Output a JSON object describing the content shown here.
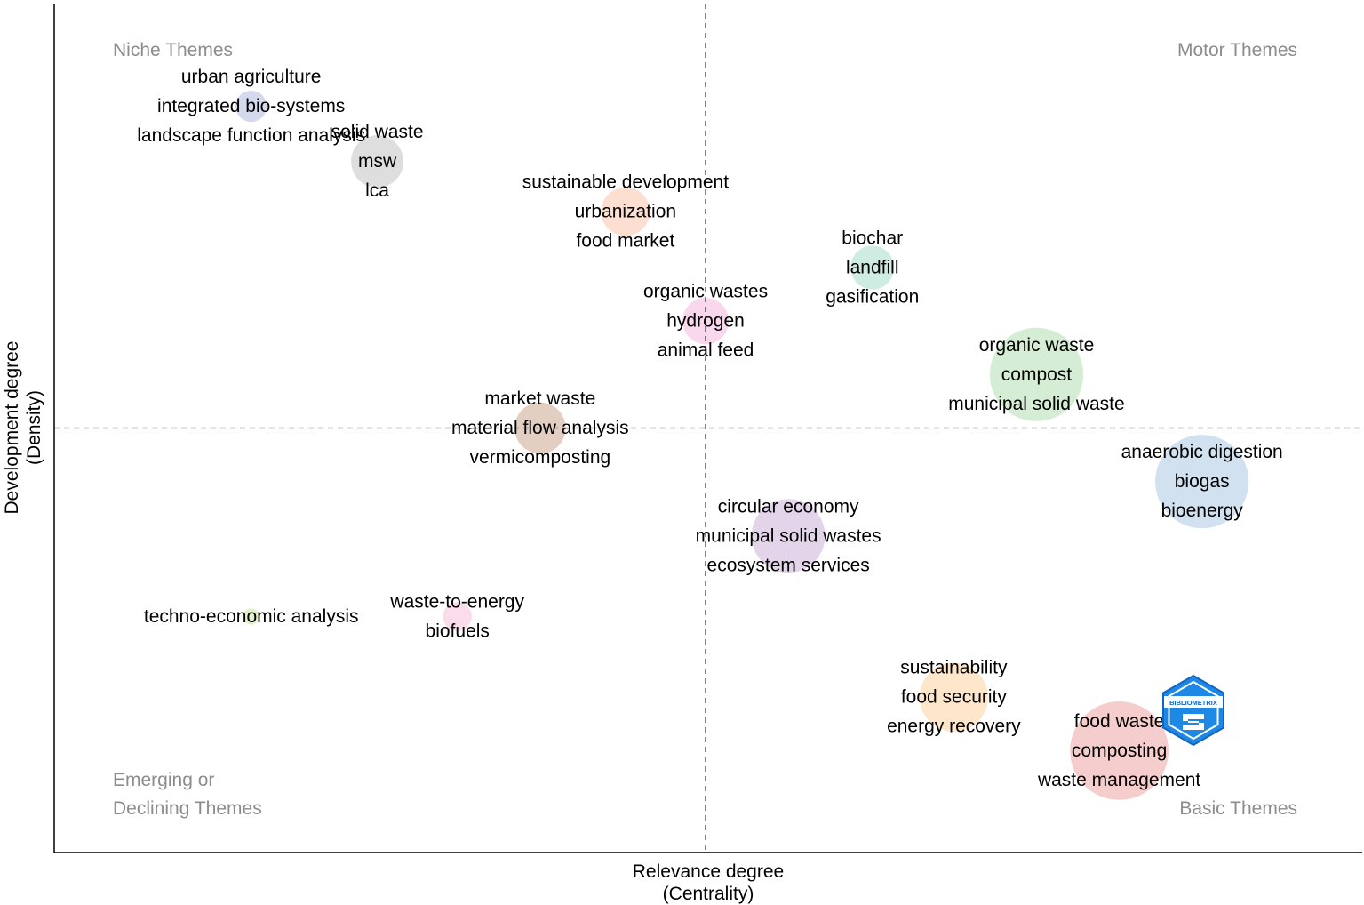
{
  "chart_data": {
    "type": "scatter",
    "xlabel": [
      "Relevance degree",
      "(Centrality)"
    ],
    "ylabel": [
      "Development degree",
      "(Density)"
    ],
    "quadrants": {
      "top_left": [
        "Niche Themes"
      ],
      "top_right": [
        "Motor Themes"
      ],
      "bottom_left": [
        "Emerging or",
        "Declining Themes"
      ],
      "bottom_right": [
        "Basic Themes"
      ]
    },
    "reference_lines": {
      "x": 0.0,
      "y": 0.0,
      "style": "dashed"
    },
    "xlim": [
      -0.496,
      0.5
    ],
    "ylim": [
      -0.5,
      0.5
    ],
    "grid": false,
    "legend": "none",
    "logo_text": "BIBLIOMETRIX",
    "clusters": [
      {
        "labels": [
          "urban agriculture",
          "integrated bio-systems",
          "landscape function analysis"
        ],
        "x": -0.346,
        "y": 0.379,
        "size": 0.18,
        "color": "#c9cfe8"
      },
      {
        "labels": [
          "solid waste",
          "msw",
          "lca"
        ],
        "x": -0.25,
        "y": 0.314,
        "size": 0.35,
        "color": "#d6d6d6"
      },
      {
        "labels": [
          "sustainable development",
          "urbanization",
          "food market"
        ],
        "x": -0.061,
        "y": 0.255,
        "size": 0.32,
        "color": "#fbd7c4"
      },
      {
        "labels": [
          "biochar",
          "landfill",
          "gasification"
        ],
        "x": 0.127,
        "y": 0.189,
        "size": 0.28,
        "color": "#c3e7dc"
      },
      {
        "labels": [
          "organic wastes",
          "hydrogen",
          "animal feed"
        ],
        "x": 0.0,
        "y": 0.126,
        "size": 0.3,
        "color": "#f8cde8"
      },
      {
        "labels": [
          "organic waste",
          "compost",
          "municipal solid waste"
        ],
        "x": 0.252,
        "y": 0.063,
        "size": 0.68,
        "color": "#cbe8c9"
      },
      {
        "labels": [
          "market waste",
          "material flow analysis",
          "vermicomposting"
        ],
        "x": -0.126,
        "y": 0.0,
        "size": 0.34,
        "color": "#dcc3b3"
      },
      {
        "labels": [
          "anaerobic digestion",
          "biogas",
          "bioenergy"
        ],
        "x": 0.378,
        "y": -0.063,
        "size": 0.68,
        "color": "#c6d9ec"
      },
      {
        "labels": [
          "circular economy",
          "municipal solid wastes",
          "ecosystem services"
        ],
        "x": 0.063,
        "y": -0.127,
        "size": 0.52,
        "color": "#dcc9e3"
      },
      {
        "labels": [
          "techno-economic analysis"
        ],
        "x": -0.346,
        "y": -0.222,
        "size": 0.06,
        "color": "#dcedbd"
      },
      {
        "labels": [
          "waste-to-energy",
          "biofuels"
        ],
        "x": -0.189,
        "y": -0.222,
        "size": 0.16,
        "color": "#f9d3e6"
      },
      {
        "labels": [
          "sustainability",
          "food security",
          "energy recovery"
        ],
        "x": 0.189,
        "y": -0.317,
        "size": 0.48,
        "color": "#fde0bc"
      },
      {
        "labels": [
          "food waste",
          "composting",
          "waste management"
        ],
        "x": 0.315,
        "y": -0.38,
        "size": 0.72,
        "color": "#f4c1c1"
      }
    ]
  }
}
